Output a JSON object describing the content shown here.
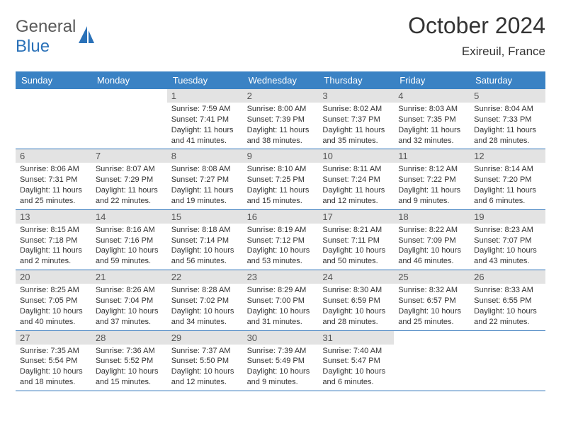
{
  "logo": {
    "general": "General",
    "blue": "Blue"
  },
  "title": "October 2024",
  "location": "Exireuil, France",
  "dayNames": [
    "Sunday",
    "Monday",
    "Tuesday",
    "Wednesday",
    "Thursday",
    "Friday",
    "Saturday"
  ],
  "colors": {
    "headerBar": "#3a82c4",
    "dayNumBg": "#e3e3e3",
    "weekBorder": "#2a71b8",
    "logoBlue": "#2a71b8",
    "logoGray": "#5a5a5a",
    "text": "#333333",
    "background": "#ffffff"
  },
  "typography": {
    "titleFontSize": 32,
    "locationFontSize": 17,
    "dayHeaderFontSize": 13,
    "dayNumFontSize": 13,
    "infoFontSize": 11,
    "logoFontSize": 24,
    "fontFamily": "Arial"
  },
  "layout": {
    "columns": 7,
    "rows": 5,
    "cellMinHeight": 78
  },
  "weeks": [
    [
      null,
      null,
      {
        "n": "1",
        "sunrise": "Sunrise: 7:59 AM",
        "sunset": "Sunset: 7:41 PM",
        "daylight": "Daylight: 11 hours and 41 minutes."
      },
      {
        "n": "2",
        "sunrise": "Sunrise: 8:00 AM",
        "sunset": "Sunset: 7:39 PM",
        "daylight": "Daylight: 11 hours and 38 minutes."
      },
      {
        "n": "3",
        "sunrise": "Sunrise: 8:02 AM",
        "sunset": "Sunset: 7:37 PM",
        "daylight": "Daylight: 11 hours and 35 minutes."
      },
      {
        "n": "4",
        "sunrise": "Sunrise: 8:03 AM",
        "sunset": "Sunset: 7:35 PM",
        "daylight": "Daylight: 11 hours and 32 minutes."
      },
      {
        "n": "5",
        "sunrise": "Sunrise: 8:04 AM",
        "sunset": "Sunset: 7:33 PM",
        "daylight": "Daylight: 11 hours and 28 minutes."
      }
    ],
    [
      {
        "n": "6",
        "sunrise": "Sunrise: 8:06 AM",
        "sunset": "Sunset: 7:31 PM",
        "daylight": "Daylight: 11 hours and 25 minutes."
      },
      {
        "n": "7",
        "sunrise": "Sunrise: 8:07 AM",
        "sunset": "Sunset: 7:29 PM",
        "daylight": "Daylight: 11 hours and 22 minutes."
      },
      {
        "n": "8",
        "sunrise": "Sunrise: 8:08 AM",
        "sunset": "Sunset: 7:27 PM",
        "daylight": "Daylight: 11 hours and 19 minutes."
      },
      {
        "n": "9",
        "sunrise": "Sunrise: 8:10 AM",
        "sunset": "Sunset: 7:25 PM",
        "daylight": "Daylight: 11 hours and 15 minutes."
      },
      {
        "n": "10",
        "sunrise": "Sunrise: 8:11 AM",
        "sunset": "Sunset: 7:24 PM",
        "daylight": "Daylight: 11 hours and 12 minutes."
      },
      {
        "n": "11",
        "sunrise": "Sunrise: 8:12 AM",
        "sunset": "Sunset: 7:22 PM",
        "daylight": "Daylight: 11 hours and 9 minutes."
      },
      {
        "n": "12",
        "sunrise": "Sunrise: 8:14 AM",
        "sunset": "Sunset: 7:20 PM",
        "daylight": "Daylight: 11 hours and 6 minutes."
      }
    ],
    [
      {
        "n": "13",
        "sunrise": "Sunrise: 8:15 AM",
        "sunset": "Sunset: 7:18 PM",
        "daylight": "Daylight: 11 hours and 2 minutes."
      },
      {
        "n": "14",
        "sunrise": "Sunrise: 8:16 AM",
        "sunset": "Sunset: 7:16 PM",
        "daylight": "Daylight: 10 hours and 59 minutes."
      },
      {
        "n": "15",
        "sunrise": "Sunrise: 8:18 AM",
        "sunset": "Sunset: 7:14 PM",
        "daylight": "Daylight: 10 hours and 56 minutes."
      },
      {
        "n": "16",
        "sunrise": "Sunrise: 8:19 AM",
        "sunset": "Sunset: 7:12 PM",
        "daylight": "Daylight: 10 hours and 53 minutes."
      },
      {
        "n": "17",
        "sunrise": "Sunrise: 8:21 AM",
        "sunset": "Sunset: 7:11 PM",
        "daylight": "Daylight: 10 hours and 50 minutes."
      },
      {
        "n": "18",
        "sunrise": "Sunrise: 8:22 AM",
        "sunset": "Sunset: 7:09 PM",
        "daylight": "Daylight: 10 hours and 46 minutes."
      },
      {
        "n": "19",
        "sunrise": "Sunrise: 8:23 AM",
        "sunset": "Sunset: 7:07 PM",
        "daylight": "Daylight: 10 hours and 43 minutes."
      }
    ],
    [
      {
        "n": "20",
        "sunrise": "Sunrise: 8:25 AM",
        "sunset": "Sunset: 7:05 PM",
        "daylight": "Daylight: 10 hours and 40 minutes."
      },
      {
        "n": "21",
        "sunrise": "Sunrise: 8:26 AM",
        "sunset": "Sunset: 7:04 PM",
        "daylight": "Daylight: 10 hours and 37 minutes."
      },
      {
        "n": "22",
        "sunrise": "Sunrise: 8:28 AM",
        "sunset": "Sunset: 7:02 PM",
        "daylight": "Daylight: 10 hours and 34 minutes."
      },
      {
        "n": "23",
        "sunrise": "Sunrise: 8:29 AM",
        "sunset": "Sunset: 7:00 PM",
        "daylight": "Daylight: 10 hours and 31 minutes."
      },
      {
        "n": "24",
        "sunrise": "Sunrise: 8:30 AM",
        "sunset": "Sunset: 6:59 PM",
        "daylight": "Daylight: 10 hours and 28 minutes."
      },
      {
        "n": "25",
        "sunrise": "Sunrise: 8:32 AM",
        "sunset": "Sunset: 6:57 PM",
        "daylight": "Daylight: 10 hours and 25 minutes."
      },
      {
        "n": "26",
        "sunrise": "Sunrise: 8:33 AM",
        "sunset": "Sunset: 6:55 PM",
        "daylight": "Daylight: 10 hours and 22 minutes."
      }
    ],
    [
      {
        "n": "27",
        "sunrise": "Sunrise: 7:35 AM",
        "sunset": "Sunset: 5:54 PM",
        "daylight": "Daylight: 10 hours and 18 minutes."
      },
      {
        "n": "28",
        "sunrise": "Sunrise: 7:36 AM",
        "sunset": "Sunset: 5:52 PM",
        "daylight": "Daylight: 10 hours and 15 minutes."
      },
      {
        "n": "29",
        "sunrise": "Sunrise: 7:37 AM",
        "sunset": "Sunset: 5:50 PM",
        "daylight": "Daylight: 10 hours and 12 minutes."
      },
      {
        "n": "30",
        "sunrise": "Sunrise: 7:39 AM",
        "sunset": "Sunset: 5:49 PM",
        "daylight": "Daylight: 10 hours and 9 minutes."
      },
      {
        "n": "31",
        "sunrise": "Sunrise: 7:40 AM",
        "sunset": "Sunset: 5:47 PM",
        "daylight": "Daylight: 10 hours and 6 minutes."
      },
      null,
      null
    ]
  ]
}
